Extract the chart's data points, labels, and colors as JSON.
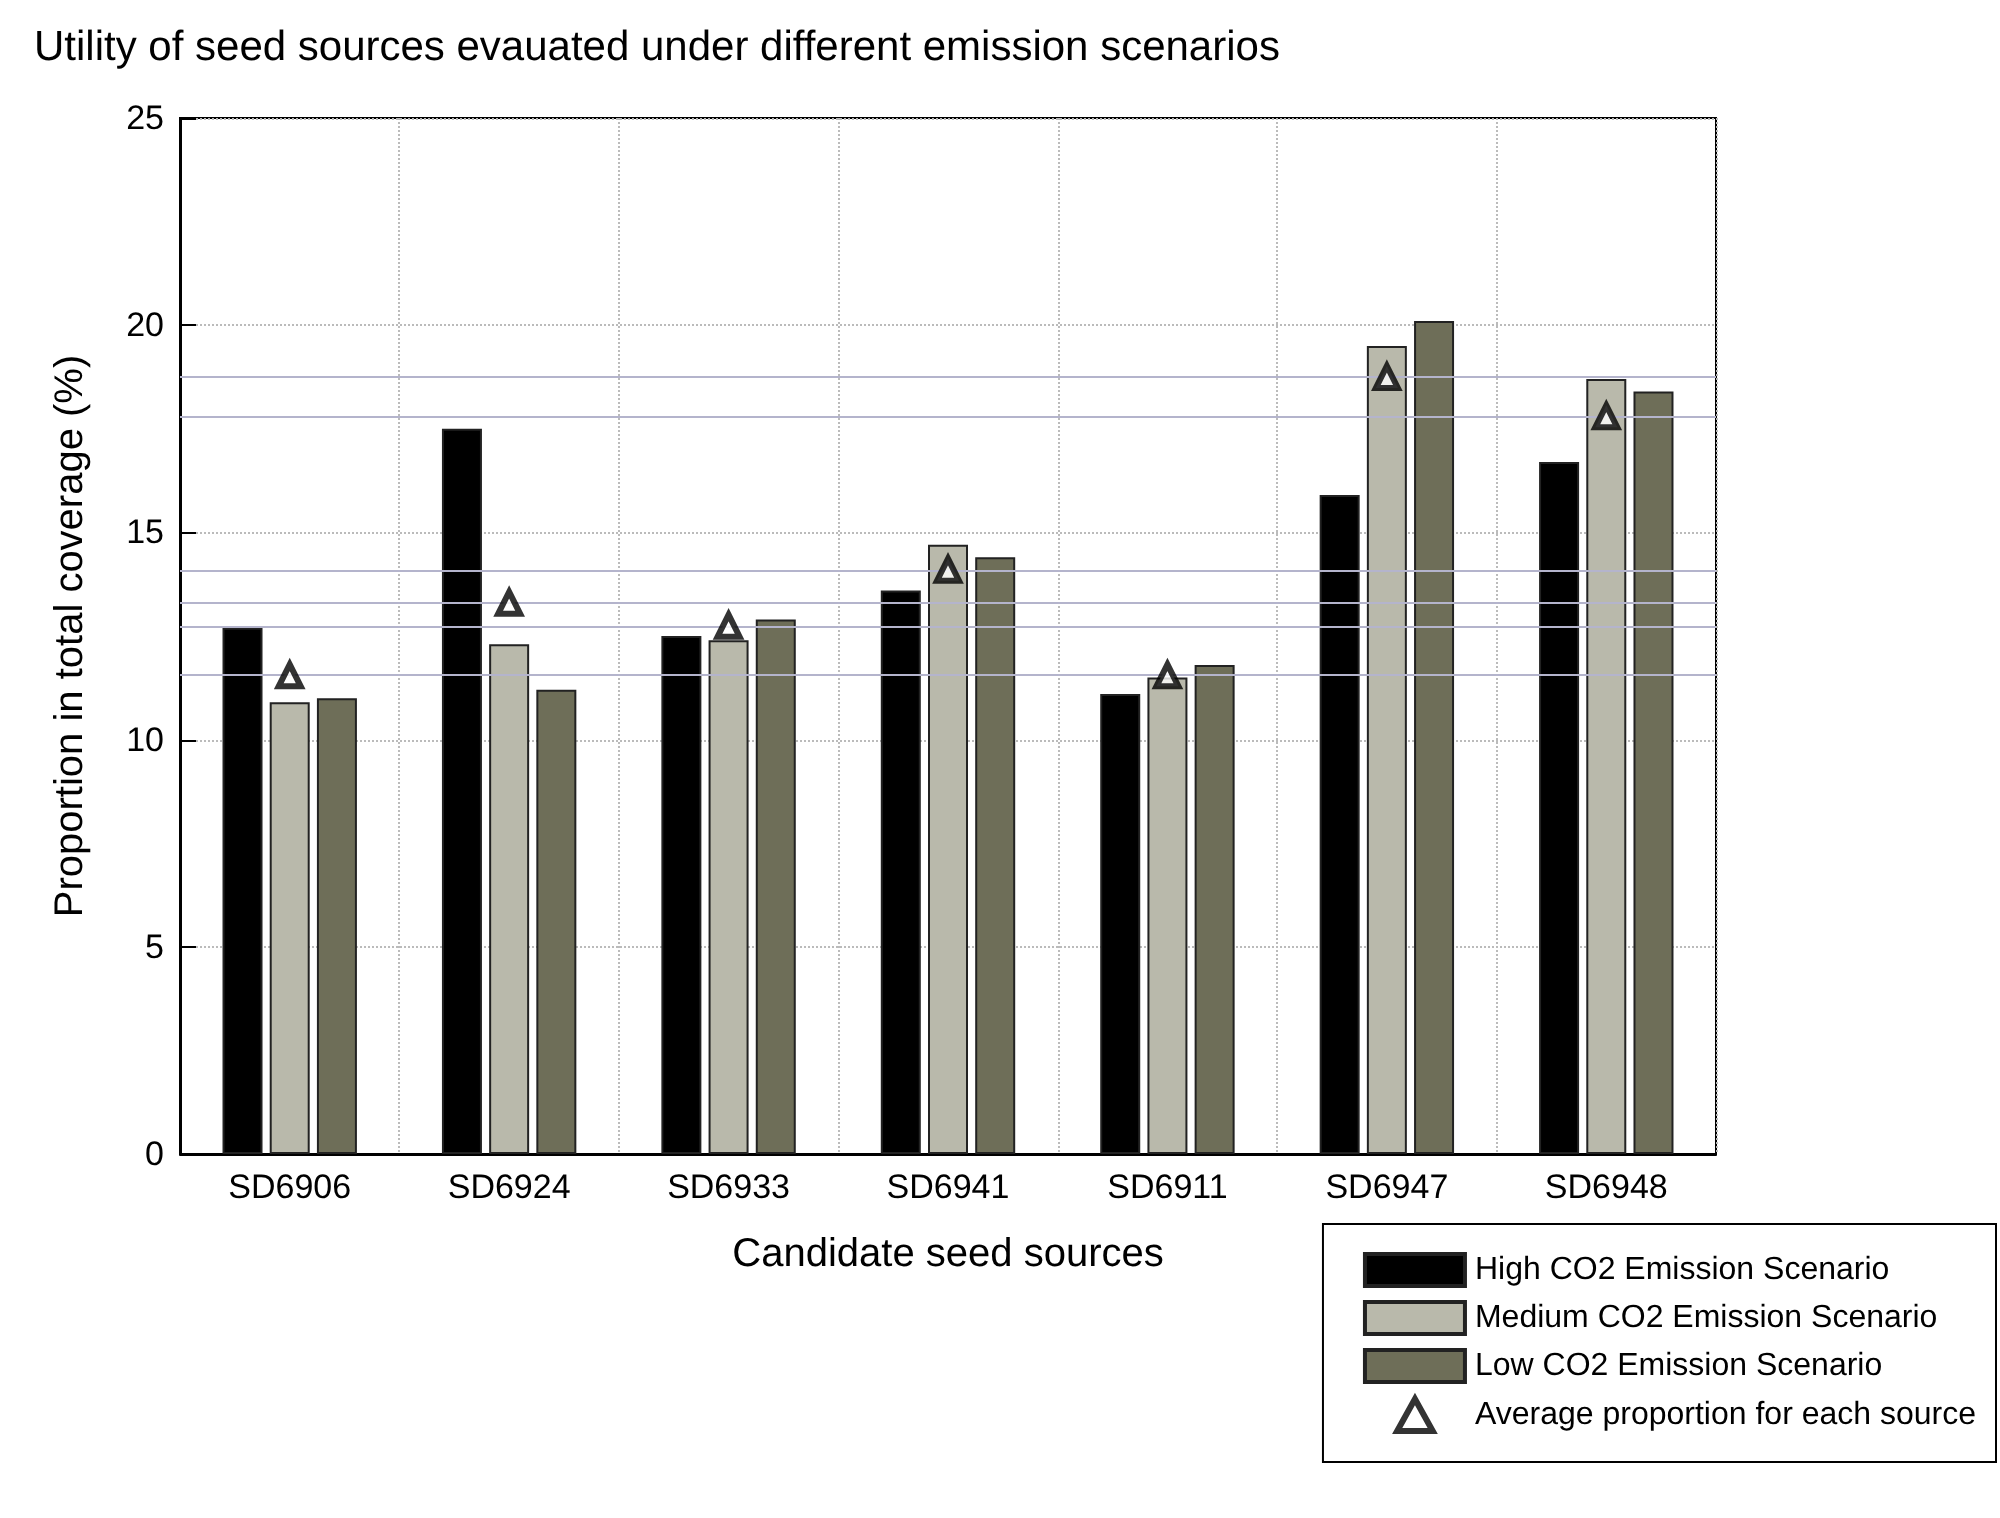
{
  "chart_data": {
    "type": "bar",
    "title": "Utility of seed sources evauated under different emission scenarios",
    "xlabel": "Candidate seed sources",
    "ylabel": "Proportion in total coverage (%)",
    "categories": [
      "SD6906",
      "SD6924",
      "SD6933",
      "SD6941",
      "SD6911",
      "SD6947",
      "SD6948"
    ],
    "series": [
      {
        "name": "High CO2 Emission Scenario",
        "color": "#000000",
        "values": [
          12.7,
          17.5,
          12.5,
          13.6,
          11.1,
          15.9,
          16.7
        ]
      },
      {
        "name": "Medium CO2 Emission Scenario",
        "color": "#b9b9ab",
        "values": [
          10.9,
          12.3,
          12.4,
          14.7,
          11.5,
          19.5,
          18.7
        ]
      },
      {
        "name": "Low CO2 Emission Scenario",
        "color": "#6e6e58",
        "values": [
          11.0,
          11.2,
          12.9,
          14.4,
          11.8,
          20.1,
          18.4
        ]
      },
      {
        "name": "Average proportion for each source",
        "type": "scatter",
        "marker": "triangle",
        "color": "#000000",
        "x": [
          "SD6906",
          "SD6924",
          "SD6933",
          "SD6941",
          "SD6911",
          "SD6947",
          "SD6948"
        ],
        "values": [
          11.55,
          13.3,
          12.75,
          14.1,
          11.55,
          18.75,
          17.8
        ]
      }
    ],
    "ref_lines": [
      {
        "axis": "y",
        "value": 11.55,
        "color": "#b4b4cc"
      },
      {
        "axis": "y",
        "value": 12.75,
        "color": "#b4b4cc"
      },
      {
        "axis": "y",
        "value": 13.3,
        "color": "#b4b4cc"
      },
      {
        "axis": "y",
        "value": 14.1,
        "color": "#b4b4cc"
      },
      {
        "axis": "y",
        "value": 17.8,
        "color": "#b4b4cc"
      },
      {
        "axis": "y",
        "value": 18.75,
        "color": "#b4b4cc"
      }
    ],
    "ylim": [
      0,
      25
    ],
    "yticks": [
      0,
      5,
      10,
      15,
      20,
      25
    ],
    "grid": true,
    "legend": "bottom right"
  }
}
